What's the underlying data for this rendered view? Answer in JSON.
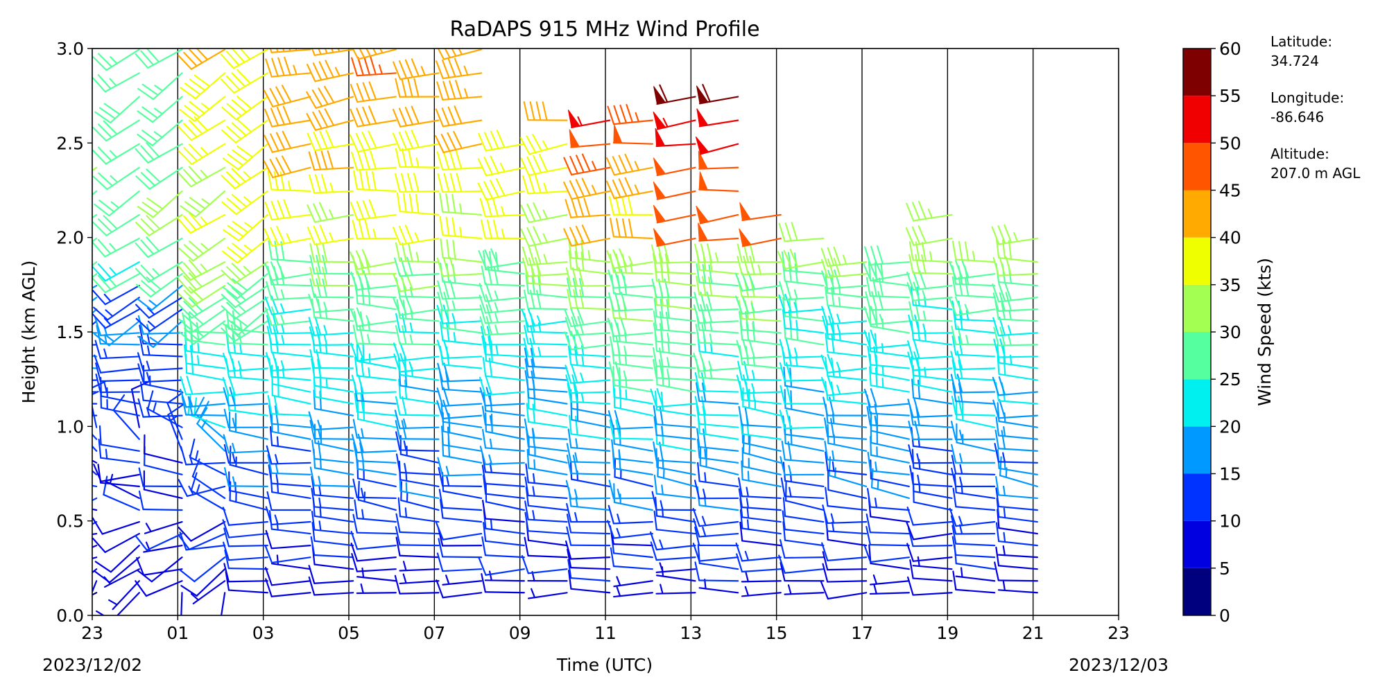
{
  "chart_data": {
    "type": "wind-barbs",
    "title": "RaDAPS 915 MHz Wind Profile",
    "xlabel": "Time (UTC)",
    "ylabel": "Height (km AGL)",
    "x_tick_labels": [
      "23",
      "01",
      "03",
      "05",
      "07",
      "09",
      "11",
      "13",
      "15",
      "17",
      "19",
      "21",
      "23"
    ],
    "x_tick_hours": [
      0,
      2,
      4,
      6,
      8,
      10,
      12,
      14,
      16,
      18,
      20,
      22,
      24
    ],
    "xlim_hours": [
      0,
      24
    ],
    "start_date_label": "2023/12/02",
    "end_date_label": "2023/12/03",
    "ylim": [
      0,
      3.0
    ],
    "y_ticks": [
      0.0,
      0.5,
      1.0,
      1.5,
      2.0,
      2.5,
      3.0
    ],
    "y_tick_labels": [
      "0.0",
      "0.5",
      "1.0",
      "1.5",
      "2.0",
      "2.5",
      "3.0"
    ],
    "grid_vertical_lines_hours": [
      2,
      4,
      6,
      8,
      10,
      12,
      14,
      16,
      18,
      20,
      22
    ],
    "colorbar": {
      "label": "Wind Speed (kts)",
      "bounds": [
        0,
        5,
        10,
        15,
        20,
        25,
        30,
        35,
        40,
        45,
        50,
        55,
        60
      ],
      "tick_labels": [
        "0",
        "5",
        "10",
        "15",
        "20",
        "25",
        "30",
        "35",
        "40",
        "45",
        "50",
        "55",
        "60"
      ],
      "colors": [
        "#00007f",
        "#0000e0",
        "#0033ff",
        "#0099ff",
        "#00f0f0",
        "#55ff9f",
        "#a4ff53",
        "#f0ff00",
        "#ffaa00",
        "#ff5500",
        "#f00000",
        "#7f0000"
      ]
    },
    "station": {
      "latitude_label": "Latitude:",
      "latitude": "34.724",
      "longitude_label": "Longitude:",
      "longitude": "-86.646",
      "altitude_label": "Altitude:",
      "altitude": "207.0 m AGL"
    },
    "profile_hours": [
      0.1,
      1.1,
      2.1,
      3.1,
      4.1,
      5.1,
      6.1,
      7.1,
      8.1,
      9.1,
      10.1,
      11.1,
      12.1,
      13.1,
      14.1,
      15.1,
      16.1,
      17.1,
      18.1,
      19.1,
      20.1,
      21.1,
      22.1
    ],
    "profile_top_km": [
      2.4,
      3.0,
      3.0,
      3.0,
      3.0,
      3.0,
      3.0,
      3.0,
      2.95,
      3.0,
      2.55,
      2.65,
      2.7,
      2.65,
      2.8,
      2.8,
      2.2,
      2.0,
      1.95,
      1.95,
      2.2,
      1.95,
      2.0
    ],
    "sample_profiles": [
      {
        "hour": 0.1,
        "levels": [
          {
            "h": 0.2,
            "speed": 8,
            "dir": 250
          },
          {
            "h": 0.5,
            "speed": 10,
            "dir": 230
          },
          {
            "h": 1.0,
            "speed": 12,
            "dir": 320
          },
          {
            "h": 1.5,
            "speed": 14,
            "dir": 300
          },
          {
            "h": 2.0,
            "speed": 17,
            "dir": 290
          },
          {
            "h": 2.5,
            "speed": 23,
            "dir": 290
          }
        ]
      },
      {
        "hour": 3.1,
        "levels": [
          {
            "h": 0.2,
            "speed": 7,
            "dir": 260
          },
          {
            "h": 0.5,
            "speed": 9,
            "dir": 270
          },
          {
            "h": 1.0,
            "speed": 14,
            "dir": 285
          },
          {
            "h": 1.5,
            "speed": 28,
            "dir": 250
          },
          {
            "h": 2.0,
            "speed": 30,
            "dir": 240
          },
          {
            "h": 2.5,
            "speed": 33,
            "dir": 240
          }
        ]
      },
      {
        "hour": 7.1,
        "levels": [
          {
            "h": 0.2,
            "speed": 9,
            "dir": 270
          },
          {
            "h": 0.5,
            "speed": 12,
            "dir": 275
          },
          {
            "h": 1.0,
            "speed": 21,
            "dir": 280
          },
          {
            "h": 1.5,
            "speed": 30,
            "dir": 270
          },
          {
            "h": 2.0,
            "speed": 36,
            "dir": 260
          },
          {
            "h": 2.5,
            "speed": 38,
            "dir": 260
          }
        ]
      },
      {
        "hour": 11.1,
        "levels": [
          {
            "h": 0.2,
            "speed": 10,
            "dir": 275
          },
          {
            "h": 0.5,
            "speed": 14,
            "dir": 280
          },
          {
            "h": 1.0,
            "speed": 22,
            "dir": 285
          },
          {
            "h": 1.5,
            "speed": 28,
            "dir": 280
          },
          {
            "h": 2.0,
            "speed": 34,
            "dir": 270
          },
          {
            "h": 2.5,
            "speed": 42,
            "dir": 270
          }
        ]
      },
      {
        "hour": 14.1,
        "levels": [
          {
            "h": 0.2,
            "speed": 10,
            "dir": 275
          },
          {
            "h": 0.5,
            "speed": 12,
            "dir": 280
          },
          {
            "h": 1.0,
            "speed": 18,
            "dir": 290
          },
          {
            "h": 1.5,
            "speed": 27,
            "dir": 280
          },
          {
            "h": 2.0,
            "speed": 52,
            "dir": 275
          },
          {
            "h": 2.5,
            "speed": 55,
            "dir": 275
          }
        ]
      },
      {
        "hour": 18.1,
        "levels": [
          {
            "h": 0.2,
            "speed": 9,
            "dir": 280
          },
          {
            "h": 0.5,
            "speed": 12,
            "dir": 280
          },
          {
            "h": 1.0,
            "speed": 20,
            "dir": 280
          },
          {
            "h": 1.5,
            "speed": 32,
            "dir": 275
          },
          {
            "h": 1.9,
            "speed": 40,
            "dir": 270
          }
        ]
      },
      {
        "hour": 22.1,
        "levels": [
          {
            "h": 0.2,
            "speed": 9,
            "dir": 280
          },
          {
            "h": 0.5,
            "speed": 12,
            "dir": 280
          },
          {
            "h": 1.0,
            "speed": 16,
            "dir": 300
          },
          {
            "h": 1.5,
            "speed": 24,
            "dir": 280
          },
          {
            "h": 1.9,
            "speed": 26,
            "dir": 275
          }
        ]
      }
    ]
  }
}
